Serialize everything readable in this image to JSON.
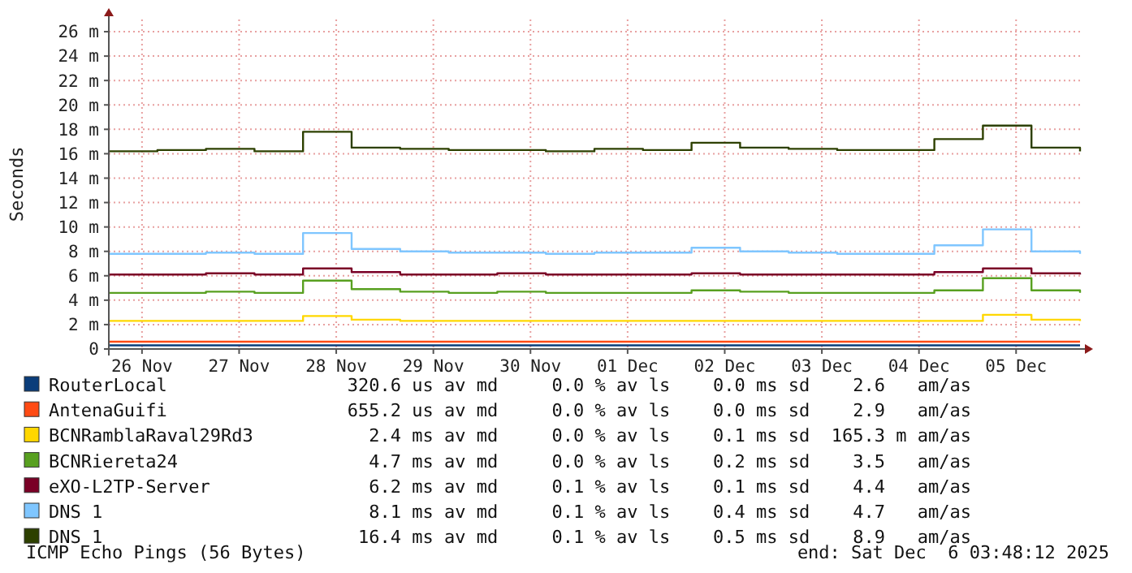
{
  "chart_data": {
    "type": "step",
    "ylabel": "Seconds",
    "x": [
      "2025-11-26T03:48",
      "2025-11-26T15:48",
      "2025-11-27T03:48",
      "2025-11-27T15:48",
      "2025-11-28T03:48",
      "2025-11-28T15:48",
      "2025-11-29T03:48",
      "2025-11-29T15:48",
      "2025-11-30T03:48",
      "2025-11-30T15:48",
      "2025-12-01T03:48",
      "2025-12-01T15:48",
      "2025-12-02T03:48",
      "2025-12-02T15:48",
      "2025-12-03T03:48",
      "2025-12-03T15:48",
      "2025-12-04T03:48",
      "2025-12-04T15:48",
      "2025-12-05T03:48",
      "2025-12-05T15:48",
      "2025-12-06T03:48"
    ],
    "xlim": [
      "2025-11-26T03:48",
      "2025-12-06T03:48"
    ],
    "xticks": [
      {
        "value": "2025-11-26T12:00",
        "label": "26 Nov"
      },
      {
        "value": "2025-11-27T12:00",
        "label": "27 Nov"
      },
      {
        "value": "2025-11-28T12:00",
        "label": "28 Nov"
      },
      {
        "value": "2025-11-29T12:00",
        "label": "29 Nov"
      },
      {
        "value": "2025-11-30T12:00",
        "label": "30 Nov"
      },
      {
        "value": "2025-12-01T12:00",
        "label": "01 Dec"
      },
      {
        "value": "2025-12-02T12:00",
        "label": "02 Dec"
      },
      {
        "value": "2025-12-03T12:00",
        "label": "03 Dec"
      },
      {
        "value": "2025-12-04T12:00",
        "label": "04 Dec"
      },
      {
        "value": "2025-12-05T12:00",
        "label": "05 Dec"
      }
    ],
    "ylim": [
      0,
      27
    ],
    "yticks": [
      0,
      {
        "value": 2,
        "label": "2 m"
      },
      {
        "value": 4,
        "label": "4 m"
      },
      {
        "value": 6,
        "label": "6 m"
      },
      {
        "value": 8,
        "label": "8 m"
      },
      {
        "value": 10,
        "label": "10 m"
      },
      {
        "value": 12,
        "label": "12 m"
      },
      {
        "value": 14,
        "label": "14 m"
      },
      {
        "value": 16,
        "label": "16 m"
      },
      {
        "value": 18,
        "label": "18 m"
      },
      {
        "value": 20,
        "label": "20 m"
      },
      {
        "value": 22,
        "label": "22 m"
      },
      {
        "value": 24,
        "label": "24 m"
      },
      {
        "value": 26,
        "label": "26 m"
      }
    ],
    "grid": true,
    "legend": "bottom",
    "series": [
      {
        "name": "RouterLocal",
        "color": "#0a3d7a",
        "values": [
          0.3,
          0.3,
          0.3,
          0.3,
          0.3,
          0.3,
          0.3,
          0.3,
          0.3,
          0.3,
          0.3,
          0.3,
          0.3,
          0.3,
          0.3,
          0.3,
          0.3,
          0.3,
          0.3,
          0.3,
          0.3
        ]
      },
      {
        "name": "AntenaGuifi",
        "color": "#ff4b14",
        "values": [
          0.6,
          0.6,
          0.6,
          0.6,
          0.6,
          0.6,
          0.6,
          0.6,
          0.6,
          0.6,
          0.6,
          0.6,
          0.6,
          0.6,
          0.6,
          0.6,
          0.6,
          0.6,
          0.6,
          0.6,
          0.6
        ]
      },
      {
        "name": "BCNRamblaRaval29Rd3",
        "color": "#ffd700",
        "values": [
          2.3,
          2.3,
          2.3,
          2.3,
          2.7,
          2.4,
          2.3,
          2.3,
          2.3,
          2.3,
          2.3,
          2.3,
          2.3,
          2.3,
          2.3,
          2.3,
          2.3,
          2.3,
          2.8,
          2.4,
          2.3
        ]
      },
      {
        "name": "BCNRiereta24",
        "color": "#58a020",
        "values": [
          4.6,
          4.6,
          4.7,
          4.6,
          5.6,
          4.9,
          4.7,
          4.6,
          4.7,
          4.6,
          4.6,
          4.6,
          4.8,
          4.7,
          4.6,
          4.6,
          4.6,
          4.8,
          5.8,
          4.8,
          4.6
        ]
      },
      {
        "name": "eXO-L2TP-Server",
        "color": "#7a0026",
        "values": [
          6.1,
          6.1,
          6.2,
          6.1,
          6.6,
          6.3,
          6.1,
          6.1,
          6.2,
          6.1,
          6.1,
          6.1,
          6.2,
          6.1,
          6.1,
          6.1,
          6.1,
          6.3,
          6.6,
          6.2,
          6.1
        ]
      },
      {
        "name": "DNS 1",
        "color": "#7fc6ff",
        "values": [
          7.8,
          7.8,
          7.9,
          7.8,
          9.5,
          8.2,
          8.0,
          7.9,
          7.9,
          7.8,
          7.9,
          7.9,
          8.3,
          8.0,
          7.9,
          7.8,
          7.8,
          8.5,
          9.8,
          8.0,
          7.8
        ]
      },
      {
        "name": "DNS 1",
        "color": "#2d4000",
        "values": [
          16.2,
          16.3,
          16.4,
          16.2,
          17.8,
          16.5,
          16.4,
          16.3,
          16.3,
          16.2,
          16.4,
          16.3,
          16.9,
          16.5,
          16.4,
          16.3,
          16.3,
          17.2,
          18.3,
          16.5,
          16.2
        ]
      }
    ],
    "annotations": [
      "320.6 us av md     0.0 % av ls    0.0 ms sd    2.6   am/as",
      "655.2 us av md     0.0 % av ls    0.0 ms sd    2.9   am/as",
      "  2.4 ms av md     0.0 % av ls    0.1 ms sd  165.3 m am/as",
      "  4.7 ms av md     0.0 % av ls    0.2 ms sd    3.5   am/as",
      "  6.2 ms av md     0.1 % av ls    0.1 ms sd    4.4   am/as",
      "  8.1 ms av md     0.1 % av ls    0.4 ms sd    4.7   am/as",
      " 16.4 ms av md     0.1 % av ls    0.5 ms sd    8.9   am/as",
      "ICMP Echo Pings (56 Bytes)",
      "end: Sat Dec  6 03:48:12 2025"
    ]
  }
}
